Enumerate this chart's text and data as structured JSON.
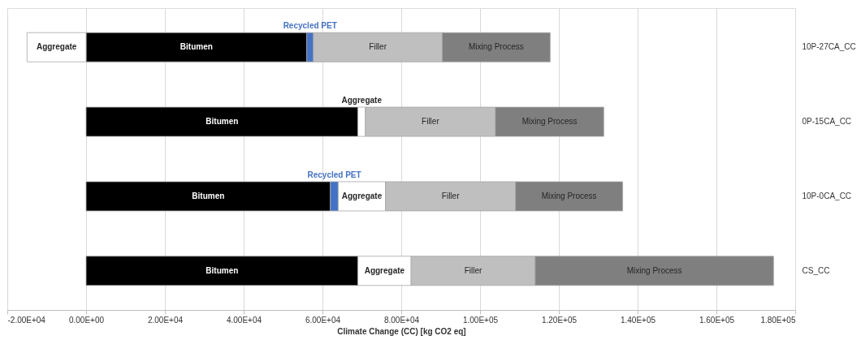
{
  "chart_data": {
    "type": "bar",
    "orientation": "horizontal",
    "stacked": true,
    "xlabel": "Climate Change (CC) [kg CO2 eq]",
    "categories": [
      "10P-27CA_CC",
      "0P-15CA_CC",
      "10P-0CA_CC",
      "CS_CC"
    ],
    "series": [
      {
        "name": "Bitumen",
        "color": "#000000",
        "values": [
          56000,
          69000,
          62000,
          69000
        ]
      },
      {
        "name": "Recycled PET",
        "color": "#4472c4",
        "values": [
          1700,
          null,
          2000,
          null
        ]
      },
      {
        "name": "Aggregate",
        "color": "#ffffff",
        "values": [
          -15000,
          1900,
          12000,
          13500
        ]
      },
      {
        "name": "Filler",
        "color": "#bfbfbf",
        "values": [
          32700,
          33000,
          33000,
          31500
        ]
      },
      {
        "name": "Mixing Process",
        "color": "#7f7f7f",
        "values": [
          27400,
          27500,
          27200,
          60500
        ]
      }
    ],
    "xlim": [
      -20000,
      180000
    ],
    "xticks": [
      {
        "value": -20000,
        "label": "-2.00E+04"
      },
      {
        "value": 0,
        "label": "0.00E+00"
      },
      {
        "value": 20000,
        "label": "2.00E+04"
      },
      {
        "value": 40000,
        "label": "4.00E+04"
      },
      {
        "value": 60000,
        "label": "6.00E+04"
      },
      {
        "value": 80000,
        "label": "8.00E+04"
      },
      {
        "value": 100000,
        "label": "1.00E+05"
      },
      {
        "value": 120000,
        "label": "1.20E+05"
      },
      {
        "value": 140000,
        "label": "1.40E+05"
      },
      {
        "value": 160000,
        "label": "1.60E+05"
      },
      {
        "value": 180000,
        "label": "1.80E+05"
      }
    ],
    "grid": "x",
    "legend": false
  }
}
